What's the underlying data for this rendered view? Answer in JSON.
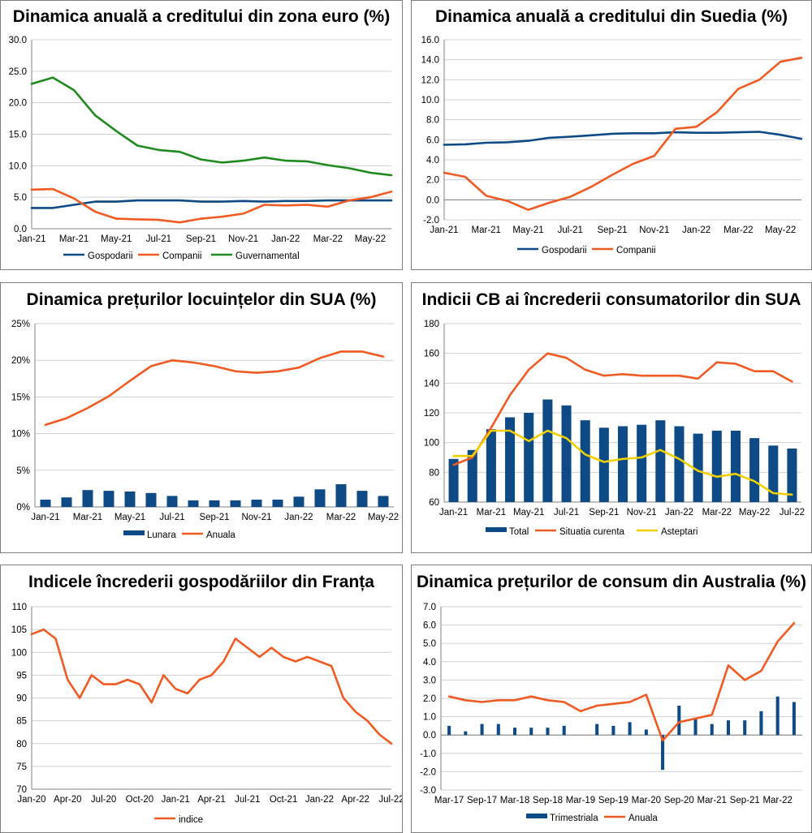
{
  "chart_data": [
    {
      "type": "line",
      "title": "Dinamica anuală a creditului din zona euro (%)",
      "x": [
        "Jan-21",
        "Feb-21",
        "Mar-21",
        "Apr-21",
        "May-21",
        "Jun-21",
        "Jul-21",
        "Aug-21",
        "Sep-21",
        "Oct-21",
        "Nov-21",
        "Dec-21",
        "Jan-22",
        "Feb-22",
        "Mar-22",
        "Apr-22",
        "May-22",
        "Jun-22"
      ],
      "xticks": [
        "Jan-21",
        "Mar-21",
        "May-21",
        "Jul-21",
        "Sep-21",
        "Nov-21",
        "Jan-22",
        "Mar-22",
        "May-22"
      ],
      "ylim": [
        0,
        30
      ],
      "ystep": 5,
      "ydecimals": 1,
      "ysuffix": "",
      "series": [
        {
          "name": "Gospodarii",
          "color": "#0e4a86",
          "values": [
            3.3,
            3.3,
            3.8,
            4.3,
            4.3,
            4.5,
            4.5,
            4.5,
            4.3,
            4.3,
            4.4,
            4.3,
            4.4,
            4.4,
            4.5,
            4.5,
            4.5,
            4.5
          ]
        },
        {
          "name": "Companii",
          "color": "#f05a23",
          "values": [
            6.2,
            6.3,
            4.8,
            2.7,
            1.6,
            1.5,
            1.4,
            1.0,
            1.6,
            1.9,
            2.4,
            3.8,
            3.7,
            3.8,
            3.5,
            4.5,
            5.0,
            5.9
          ]
        },
        {
          "name": "Guvernamental",
          "color": "#1f8a1f",
          "values": [
            23.0,
            24.0,
            22.0,
            18.0,
            15.5,
            13.2,
            12.5,
            12.2,
            11.0,
            10.5,
            10.8,
            11.3,
            10.8,
            10.7,
            10.1,
            9.6,
            8.9,
            8.5
          ]
        }
      ]
    },
    {
      "type": "line",
      "title": "Dinamica anuală a creditului din Suedia (%)",
      "x": [
        "Jan-21",
        "Feb-21",
        "Mar-21",
        "Apr-21",
        "May-21",
        "Jun-21",
        "Jul-21",
        "Aug-21",
        "Sep-21",
        "Oct-21",
        "Nov-21",
        "Dec-21",
        "Jan-22",
        "Feb-22",
        "Mar-22",
        "Apr-22",
        "May-22",
        "Jun-22"
      ],
      "xticks": [
        "Jan-21",
        "Mar-21",
        "May-21",
        "Jul-21",
        "Sep-21",
        "Nov-21",
        "Jan-22",
        "Mar-22",
        "May-22"
      ],
      "ylim": [
        -2,
        16
      ],
      "ystep": 2,
      "ydecimals": 1,
      "ysuffix": "",
      "series": [
        {
          "name": "Gospodarii",
          "color": "#0e4a86",
          "values": [
            5.5,
            5.55,
            5.7,
            5.75,
            5.9,
            6.2,
            6.3,
            6.45,
            6.6,
            6.65,
            6.65,
            6.75,
            6.7,
            6.7,
            6.75,
            6.8,
            6.5,
            6.1
          ]
        },
        {
          "name": "Companii",
          "color": "#f05a23",
          "values": [
            2.7,
            2.3,
            0.4,
            -0.1,
            -1.0,
            -0.3,
            0.3,
            1.3,
            2.5,
            3.6,
            4.4,
            7.1,
            7.3,
            8.8,
            11.1,
            12.0,
            13.8,
            14.2
          ]
        }
      ]
    },
    {
      "type": "bar+line",
      "title": "Dinamica prețurilor locuințelor din SUA (%)",
      "x": [
        "Jan-21",
        "Feb-21",
        "Mar-21",
        "Apr-21",
        "May-21",
        "Jun-21",
        "Jul-21",
        "Aug-21",
        "Sep-21",
        "Oct-21",
        "Nov-21",
        "Dec-21",
        "Jan-22",
        "Feb-22",
        "Mar-22",
        "Apr-22",
        "May-22"
      ],
      "xticks": [
        "Jan-21",
        "Mar-21",
        "May-21",
        "Jul-21",
        "Sep-21",
        "Nov-21",
        "Jan-22",
        "Mar-22",
        "May-22"
      ],
      "ylim": [
        0,
        25
      ],
      "ystep": 5,
      "ydecimals": 0,
      "ysuffix": "%",
      "bars": [
        {
          "name": "Lunara",
          "color": "#0e4a86",
          "values": [
            1.0,
            1.3,
            2.3,
            2.2,
            2.1,
            1.9,
            1.5,
            0.9,
            0.9,
            0.9,
            1.0,
            1.0,
            1.4,
            2.4,
            3.1,
            2.2,
            1.5
          ]
        }
      ],
      "series": [
        {
          "name": "Anuala",
          "color": "#f05a23",
          "values": [
            11.2,
            12.1,
            13.5,
            15.1,
            17.2,
            19.2,
            20.0,
            19.7,
            19.2,
            18.5,
            18.3,
            18.5,
            19.0,
            20.3,
            21.2,
            21.2,
            20.5
          ]
        }
      ]
    },
    {
      "type": "bar+line",
      "title": "Indicii CB ai încrederii consumatorilor din SUA",
      "x": [
        "Jan-21",
        "Feb-21",
        "Mar-21",
        "Apr-21",
        "May-21",
        "Jun-21",
        "Jul-21",
        "Aug-21",
        "Sep-21",
        "Oct-21",
        "Nov-21",
        "Dec-21",
        "Jan-22",
        "Feb-22",
        "Mar-22",
        "Apr-22",
        "May-22",
        "Jun-22",
        "Jul-22"
      ],
      "xticks": [
        "Jan-21",
        "Mar-21",
        "May-21",
        "Jul-21",
        "Sep-21",
        "Nov-21",
        "Jan-22",
        "Mar-22",
        "May-22",
        "Jul-22"
      ],
      "ylim": [
        60,
        180
      ],
      "ystep": 20,
      "ydecimals": 0,
      "ysuffix": "",
      "bars": [
        {
          "name": "Total",
          "color": "#0e4a86",
          "values": [
            89,
            95,
            109,
            117,
            120,
            129,
            125,
            115,
            110,
            111,
            112,
            115,
            111,
            106,
            108,
            108,
            103,
            98,
            96
          ]
        }
      ],
      "series": [
        {
          "name": "Situatia curenta",
          "color": "#f05a23",
          "values": [
            85,
            90,
            110,
            132,
            149,
            160,
            157,
            149,
            145,
            146,
            145,
            145,
            145,
            143,
            154,
            153,
            148,
            148,
            141
          ]
        },
        {
          "name": "Asteptari",
          "color": "#f0d000",
          "values": [
            91,
            91,
            108,
            108,
            101,
            108,
            103,
            92,
            87,
            89,
            90,
            95,
            89,
            81,
            77,
            79,
            74,
            66,
            65
          ]
        }
      ]
    },
    {
      "type": "line",
      "title": "Indicele încrederii gospodăriilor din Franța",
      "x": [
        "Jan-20",
        "Feb-20",
        "Mar-20",
        "Apr-20",
        "May-20",
        "Jun-20",
        "Jul-20",
        "Aug-20",
        "Sep-20",
        "Oct-20",
        "Nov-20",
        "Dec-20",
        "Jan-21",
        "Feb-21",
        "Mar-21",
        "Apr-21",
        "May-21",
        "Jun-21",
        "Jul-21",
        "Aug-21",
        "Sep-21",
        "Oct-21",
        "Nov-21",
        "Dec-21",
        "Jan-22",
        "Feb-22",
        "Mar-22",
        "Apr-22",
        "May-22",
        "Jun-22",
        "Jul-22"
      ],
      "xticks": [
        "Jan-20",
        "Apr-20",
        "Jul-20",
        "Oct-20",
        "Jan-21",
        "Apr-21",
        "Jul-21",
        "Oct-21",
        "Jan-22",
        "Apr-22",
        "Jul-22"
      ],
      "ylim": [
        70,
        110
      ],
      "ystep": 5,
      "ydecimals": 0,
      "ysuffix": "",
      "series": [
        {
          "name": "indice",
          "color": "#f05a23",
          "values": [
            104,
            105,
            103,
            94,
            90,
            95,
            93,
            93,
            94,
            93,
            89,
            95,
            92,
            91,
            94,
            95,
            98,
            103,
            101,
            99,
            101,
            99,
            98,
            99,
            98,
            97,
            90,
            87,
            85,
            82,
            80
          ]
        }
      ]
    },
    {
      "type": "bar+line",
      "title": "Dinamica prețurilor de consum din Australia (%)",
      "x": [
        "Mar-17",
        "Jun-17",
        "Sep-17",
        "Dec-17",
        "Mar-18",
        "Jun-18",
        "Sep-18",
        "Dec-18",
        "Mar-19",
        "Jun-19",
        "Sep-19",
        "Dec-19",
        "Mar-20",
        "Jun-20",
        "Sep-20",
        "Dec-20",
        "Mar-21",
        "Jun-21",
        "Sep-21",
        "Dec-21",
        "Mar-22",
        "Jun-22"
      ],
      "xticks": [
        "Mar-17",
        "Sep-17",
        "Mar-18",
        "Sep-18",
        "Mar-19",
        "Sep-19",
        "Mar-20",
        "Sep-20",
        "Mar-21",
        "Sep-21",
        "Mar-22"
      ],
      "ylim": [
        -3,
        7
      ],
      "ystep": 1,
      "ydecimals": 1,
      "ysuffix": "",
      "bars": [
        {
          "name": "Trimestriala",
          "color": "#0e4a86",
          "values": [
            0.5,
            0.2,
            0.6,
            0.6,
            0.4,
            0.4,
            0.4,
            0.5,
            0.0,
            0.6,
            0.5,
            0.7,
            0.3,
            -1.9,
            1.6,
            0.9,
            0.6,
            0.8,
            0.8,
            1.3,
            2.1,
            1.8
          ]
        }
      ],
      "series": [
        {
          "name": "Anuala",
          "color": "#f05a23",
          "values": [
            2.1,
            1.9,
            1.8,
            1.9,
            1.9,
            2.1,
            1.9,
            1.8,
            1.3,
            1.6,
            1.7,
            1.8,
            2.2,
            -0.3,
            0.7,
            0.9,
            1.1,
            3.8,
            3.0,
            3.5,
            5.1,
            6.1
          ]
        }
      ]
    }
  ]
}
